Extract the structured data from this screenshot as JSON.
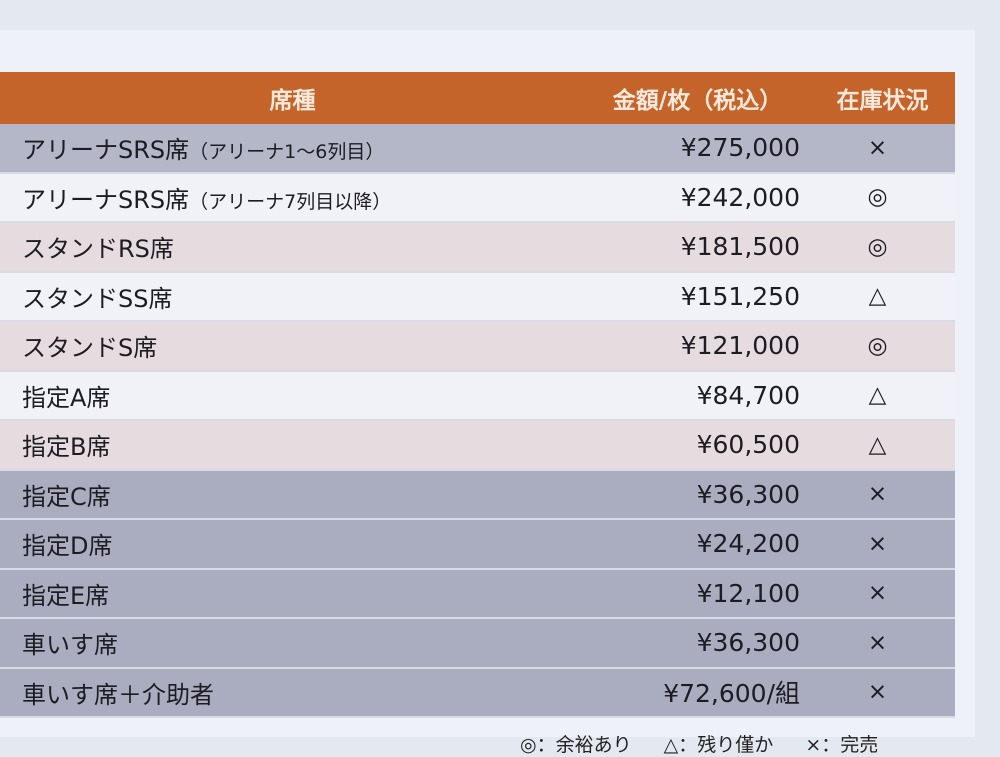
{
  "header": {
    "seat_type": "席種",
    "price": "金額/枚（税込）",
    "stock": "在庫状況"
  },
  "rows": [
    {
      "seat": "アリーナSRS席",
      "note": "（アリーナ1〜6列目）",
      "price": "¥275,000",
      "stock": "×",
      "shade": "g"
    },
    {
      "seat": "アリーナSRS席",
      "note": "（アリーナ7列目以降）",
      "price": "¥242,000",
      "stock": "◎",
      "shade": "w"
    },
    {
      "seat": "スタンドRS席",
      "note": "",
      "price": "¥181,500",
      "stock": "◎",
      "shade": "p"
    },
    {
      "seat": "スタンドSS席",
      "note": "",
      "price": "¥151,250",
      "stock": "△",
      "shade": "w"
    },
    {
      "seat": "スタンドS席",
      "note": "",
      "price": "¥121,000",
      "stock": "◎",
      "shade": "p"
    },
    {
      "seat": "指定A席",
      "note": "",
      "price": "¥84,700",
      "stock": "△",
      "shade": "w"
    },
    {
      "seat": "指定B席",
      "note": "",
      "price": "¥60,500",
      "stock": "△",
      "shade": "p"
    },
    {
      "seat": "指定C席",
      "note": "",
      "price": "¥36,300",
      "stock": "×",
      "shade": "d"
    },
    {
      "seat": "指定D席",
      "note": "",
      "price": "¥24,200",
      "stock": "×",
      "shade": "d"
    },
    {
      "seat": "指定E席",
      "note": "",
      "price": "¥12,100",
      "stock": "×",
      "shade": "d"
    },
    {
      "seat": "車いす席",
      "note": "",
      "price": "¥36,300",
      "stock": "×",
      "shade": "d"
    },
    {
      "seat": "車いす席＋介助者",
      "note": "",
      "price": "¥72,600/組",
      "stock": "×",
      "shade": "d"
    }
  ],
  "legend": [
    "◎：余裕あり",
    "△：残り僅か",
    "×：完売"
  ],
  "colors": {
    "header": "#c4632a",
    "gray_row": "#a9adbf",
    "pink_row": "#e6dbdf"
  }
}
